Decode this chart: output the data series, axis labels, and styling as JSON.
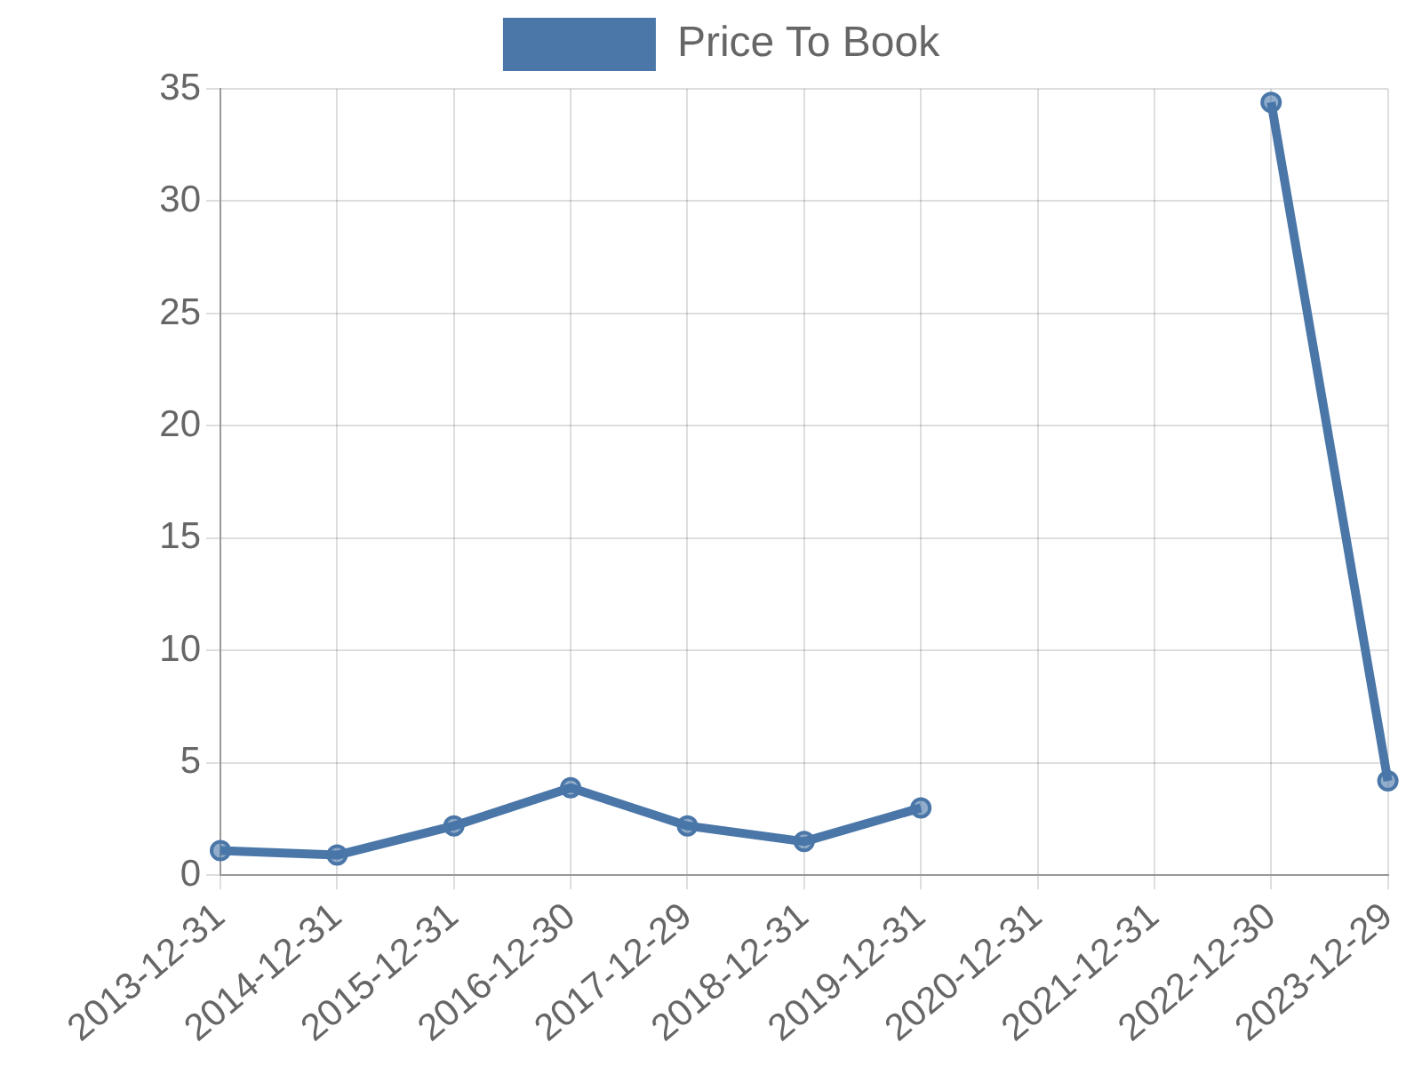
{
  "chart_data": {
    "type": "line",
    "categories": [
      "2013-12-31",
      "2014-12-31",
      "2015-12-31",
      "2016-12-30",
      "2017-12-29",
      "2018-12-31",
      "2019-12-31",
      "2020-12-31",
      "2021-12-31",
      "2022-12-30",
      "2023-12-29"
    ],
    "series": [
      {
        "name": "Price To Book",
        "color": "#4a76a8",
        "values": [
          1.1,
          0.9,
          2.2,
          3.9,
          2.2,
          1.5,
          3.0,
          null,
          null,
          34.4,
          4.2
        ]
      }
    ],
    "ylim": [
      0,
      35
    ],
    "yticks": [
      0,
      5,
      10,
      15,
      20,
      25,
      30,
      35
    ],
    "grid": true,
    "legend": "top",
    "marker": "circle",
    "line_style": "solid"
  }
}
